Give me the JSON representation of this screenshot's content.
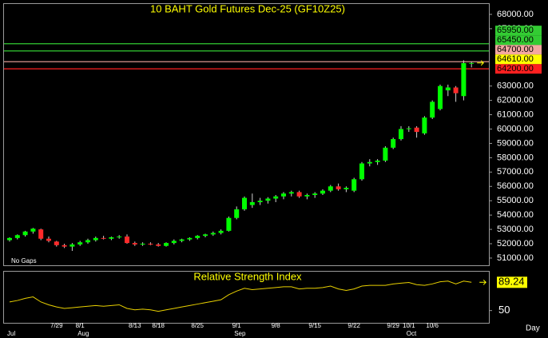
{
  "chart_data": [
    {
      "type": "candlestick",
      "title": "10 BAHT Gold Futures Dec-25 (GF10Z25)",
      "note": "No Gaps",
      "categories": [
        null,
        null,
        null,
        null,
        null,
        null,
        "7/29",
        null,
        null,
        "8/1",
        null,
        null,
        null,
        null,
        null,
        null,
        "8/13",
        null,
        null,
        "8/18",
        null,
        null,
        null,
        null,
        "8/25",
        null,
        null,
        null,
        null,
        "9/1",
        null,
        null,
        null,
        null,
        "9/8",
        null,
        null,
        null,
        null,
        "9/15",
        null,
        null,
        null,
        null,
        "9/22",
        null,
        null,
        null,
        null,
        "9/29",
        null,
        "10/1",
        null,
        null,
        "10/6",
        null,
        null,
        null,
        null,
        null
      ],
      "month_labels": [
        {
          "value": 0,
          "label": "Jul"
        },
        {
          "value": 9,
          "label": "Aug"
        },
        {
          "value": 29,
          "label": "Sep"
        },
        {
          "value": 51,
          "label": "Oct"
        }
      ],
      "open": [
        52250,
        52400,
        52600,
        52850,
        53000,
        52350,
        52150,
        51900,
        51800,
        51950,
        52100,
        52250,
        52400,
        52350,
        52450,
        52500,
        52050,
        51950,
        52000,
        51950,
        51850,
        52050,
        52200,
        52300,
        52400,
        52550,
        52650,
        52750,
        52900,
        53800,
        54400,
        54700,
        54900,
        55000,
        55150,
        55300,
        55500,
        55600,
        55300,
        55400,
        55500,
        55700,
        56000,
        55800,
        55700,
        56500,
        57600,
        57700,
        57800,
        58700,
        59300,
        60000,
        60100,
        59700,
        60800,
        61400,
        62700,
        62900,
        62300,
        64600
      ],
      "high": [
        52450,
        52650,
        52900,
        53100,
        53050,
        52500,
        52200,
        52000,
        52050,
        52200,
        52350,
        52500,
        52550,
        52500,
        52600,
        52650,
        52150,
        52100,
        52100,
        52050,
        52100,
        52300,
        52350,
        52450,
        52600,
        52700,
        52850,
        53000,
        53900,
        54600,
        55300,
        55500,
        55200,
        55250,
        55400,
        55600,
        55700,
        55700,
        55500,
        55600,
        55800,
        56100,
        56200,
        56000,
        56600,
        57700,
        57900,
        57900,
        58800,
        59400,
        60200,
        60200,
        60200,
        60900,
        62000,
        63100,
        63100,
        63000,
        64800,
        64700
      ],
      "low": [
        52150,
        52300,
        52500,
        52700,
        52250,
        52100,
        51800,
        51700,
        51500,
        51850,
        52000,
        52150,
        52300,
        52250,
        52350,
        52000,
        51850,
        51850,
        51900,
        51800,
        51800,
        51950,
        52100,
        52200,
        52300,
        52450,
        52550,
        52650,
        52850,
        53700,
        54300,
        54500,
        54700,
        54800,
        54900,
        55100,
        55300,
        55200,
        55100,
        55200,
        55400,
        55600,
        55700,
        55600,
        55600,
        56400,
        57400,
        57500,
        57700,
        58600,
        59200,
        59800,
        59400,
        59600,
        60700,
        61300,
        62300,
        61900,
        62000,
        64300
      ],
      "close": [
        52400,
        52600,
        52850,
        53050,
        52350,
        52200,
        51900,
        51800,
        51950,
        52100,
        52250,
        52400,
        52350,
        52450,
        52500,
        52050,
        51950,
        52000,
        51950,
        51850,
        52050,
        52200,
        52300,
        52400,
        52550,
        52650,
        52750,
        52900,
        53800,
        54400,
        55200,
        54900,
        55000,
        55150,
        55300,
        55500,
        55600,
        55300,
        55400,
        55500,
        55700,
        56000,
        55800,
        55900,
        56500,
        57600,
        57700,
        57800,
        58700,
        59300,
        60000,
        60050,
        59800,
        60800,
        61900,
        63000,
        62900,
        62500,
        64600,
        64610
      ],
      "up_color": "#00ff00",
      "down_color": "#ff2a2a",
      "ylim": [
        50440,
        68780
      ],
      "yticks": [
        {
          "value": 51000,
          "label": "51000.00"
        },
        {
          "value": 52000,
          "label": "52000.00"
        },
        {
          "value": 53000,
          "label": "53000.00"
        },
        {
          "value": 54000,
          "label": "54000.00"
        },
        {
          "value": 55000,
          "label": "55000.00"
        },
        {
          "value": 56000,
          "label": "56000.00"
        },
        {
          "value": 57000,
          "label": "57000.00"
        },
        {
          "value": 58000,
          "label": "58000.00"
        },
        {
          "value": 59000,
          "label": "59000.00"
        },
        {
          "value": 60000,
          "label": "60000.00"
        },
        {
          "value": 61000,
          "label": "61000.00"
        },
        {
          "value": 62000,
          "label": "62000.00"
        },
        {
          "value": 63000,
          "label": "63000.00"
        },
        {
          "value": 67000,
          "label": "67000.00"
        },
        {
          "value": 68000,
          "label": "68000.00"
        }
      ],
      "levels": [
        {
          "value": 65950,
          "label": "65950.00",
          "color": "#33cc33"
        },
        {
          "value": 65450,
          "label": "65450.00",
          "color": "#33cc33"
        },
        {
          "value": 64700,
          "label": "64700.00",
          "color": "#f4a8a0"
        },
        {
          "value": 64200,
          "label": "64200.00",
          "color": "#ff2020"
        }
      ],
      "last_price": {
        "value": 64610,
        "label": "64610.00",
        "color": "#ffff00"
      }
    },
    {
      "type": "line",
      "title": "Relative Strength Index",
      "x_label": "Day",
      "color": "#e8d000",
      "values": [
        62,
        64,
        67,
        69,
        62,
        58,
        55,
        53,
        54,
        55,
        56,
        57,
        56,
        57,
        58,
        53,
        51,
        52,
        51,
        49,
        51,
        53,
        55,
        57,
        59,
        61,
        63,
        65,
        72,
        77,
        81,
        79,
        80,
        81,
        82,
        83,
        83,
        80,
        81,
        81,
        82,
        84,
        80,
        78,
        80,
        84,
        85,
        85,
        85,
        87,
        88,
        89,
        86,
        85,
        87,
        90,
        91,
        87,
        91,
        89.24
      ],
      "ylim": [
        33,
        104
      ],
      "yticks": [
        50
      ],
      "last_label_color": "#ffff00"
    }
  ]
}
